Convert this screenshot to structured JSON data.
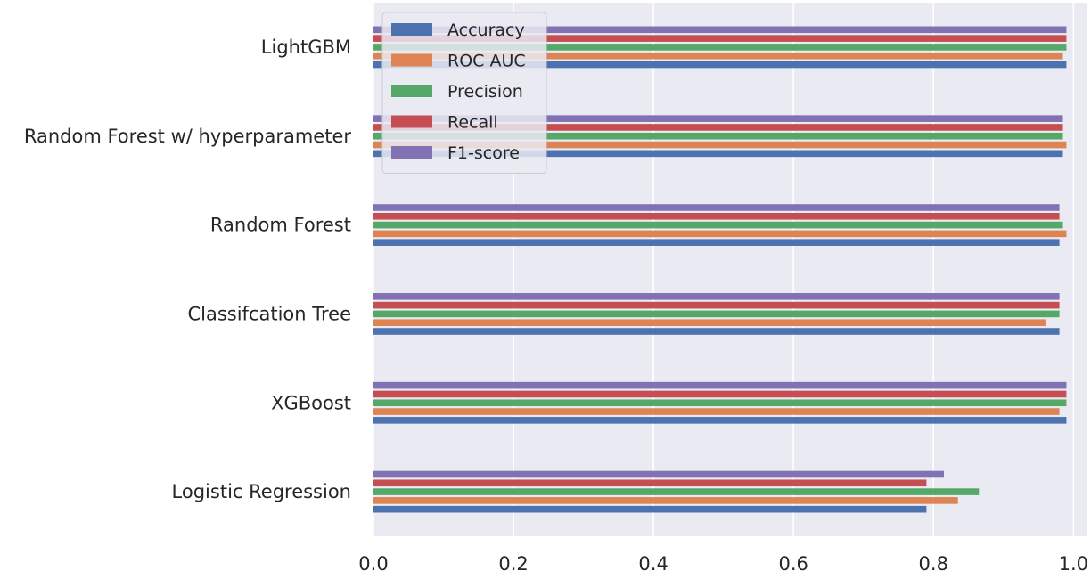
{
  "chart_data": {
    "type": "bar",
    "orientation": "horizontal",
    "categories": [
      "Logistic Regression",
      "XGBoost",
      "Classifcation Tree",
      "Random Forest",
      "Random Forest w/ hyperparameter",
      "LightGBM"
    ],
    "series": [
      {
        "name": "Accuracy",
        "color": "#4c72b0",
        "values": [
          0.79,
          0.99,
          0.98,
          0.98,
          0.985,
          0.99
        ]
      },
      {
        "name": "ROC AUC",
        "color": "#dd8452",
        "values": [
          0.835,
          0.98,
          0.96,
          0.99,
          0.99,
          0.985
        ]
      },
      {
        "name": "Precision",
        "color": "#55a868",
        "values": [
          0.865,
          0.99,
          0.98,
          0.985,
          0.985,
          0.99
        ]
      },
      {
        "name": "Recall",
        "color": "#c44e52",
        "values": [
          0.79,
          0.99,
          0.98,
          0.98,
          0.985,
          0.99
        ]
      },
      {
        "name": "F1-score",
        "color": "#8172b3",
        "values": [
          0.815,
          0.99,
          0.98,
          0.98,
          0.985,
          0.99
        ]
      }
    ],
    "xlim": [
      0.0,
      1.02
    ],
    "xticks": [
      "0.0",
      "0.2",
      "0.4",
      "0.6",
      "0.8",
      "1.0"
    ],
    "xtick_values": [
      0.0,
      0.2,
      0.4,
      0.6,
      0.8,
      1.0
    ],
    "title": "",
    "xlabel": "",
    "ylabel": "",
    "grid": true,
    "legend_position": "top-left"
  },
  "style": {
    "plot_background": "#eaeaf2",
    "grid_color": "#ffffff"
  }
}
